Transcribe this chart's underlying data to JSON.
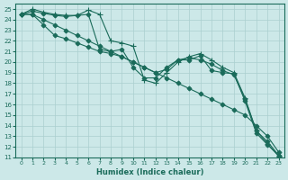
{
  "xlabel": "Humidex (Indice chaleur)",
  "xlim": [
    -0.5,
    23.5
  ],
  "ylim": [
    11,
    25.5
  ],
  "yticks": [
    11,
    12,
    13,
    14,
    15,
    16,
    17,
    18,
    19,
    20,
    21,
    22,
    23,
    24,
    25
  ],
  "xticks": [
    0,
    1,
    2,
    3,
    4,
    5,
    6,
    7,
    8,
    9,
    10,
    11,
    12,
    13,
    14,
    15,
    16,
    17,
    18,
    19,
    20,
    21,
    22,
    23
  ],
  "bg_color": "#cce8e8",
  "grid_color": "#aacfcf",
  "line_color": "#1a6b5a",
  "series": [
    {
      "x": [
        0,
        1,
        2,
        3,
        4,
        5,
        6,
        7,
        8,
        9,
        10,
        11,
        12,
        13,
        14,
        15,
        16,
        17,
        18,
        19,
        20,
        21,
        22,
        23
      ],
      "y": [
        24.5,
        24.5,
        24.0,
        23.5,
        23.0,
        22.5,
        22.0,
        21.5,
        21.0,
        20.5,
        20.0,
        19.5,
        19.0,
        18.5,
        18.0,
        17.5,
        17.0,
        16.5,
        16.0,
        15.5,
        15.0,
        14.0,
        13.0,
        11.5
      ],
      "marker": "D",
      "markersize": 2.5
    },
    {
      "x": [
        0,
        1,
        2,
        3,
        4,
        5,
        6,
        7,
        8,
        9,
        10,
        11,
        12,
        13,
        14,
        15,
        16,
        17,
        18,
        19,
        20,
        21,
        22,
        23
      ],
      "y": [
        24.5,
        24.8,
        24.6,
        24.4,
        24.3,
        24.4,
        24.5,
        21.2,
        21.0,
        21.2,
        19.5,
        18.5,
        18.5,
        19.5,
        20.2,
        20.2,
        20.6,
        19.2,
        19.0,
        18.9,
        16.3,
        13.3,
        12.2,
        11.2
      ],
      "marker": "D",
      "markersize": 2.5
    },
    {
      "x": [
        0,
        1,
        2,
        3,
        4,
        5,
        6,
        7,
        8,
        9,
        10,
        11,
        12,
        13,
        14,
        15,
        16,
        17,
        18,
        19,
        20,
        21,
        22,
        23
      ],
      "y": [
        24.5,
        25.0,
        24.7,
        24.5,
        24.4,
        24.4,
        24.9,
        24.5,
        22.0,
        21.8,
        21.5,
        18.3,
        18.0,
        19.0,
        20.0,
        20.5,
        20.8,
        20.2,
        19.5,
        19.0,
        16.6,
        13.5,
        12.3,
        11.1
      ],
      "marker": "+",
      "markersize": 5
    },
    {
      "x": [
        0,
        1,
        2,
        3,
        4,
        5,
        6,
        7,
        8,
        9,
        10,
        11,
        12,
        13,
        14,
        15,
        16,
        17,
        18,
        19,
        20,
        21,
        22,
        23
      ],
      "y": [
        24.5,
        24.5,
        23.5,
        22.5,
        22.2,
        21.8,
        21.4,
        21.0,
        20.8,
        20.5,
        20.0,
        19.5,
        19.0,
        19.3,
        20.2,
        20.4,
        20.2,
        19.8,
        19.2,
        18.8,
        16.5,
        13.5,
        12.5,
        11.2
      ],
      "marker": "D",
      "markersize": 2.5
    }
  ]
}
